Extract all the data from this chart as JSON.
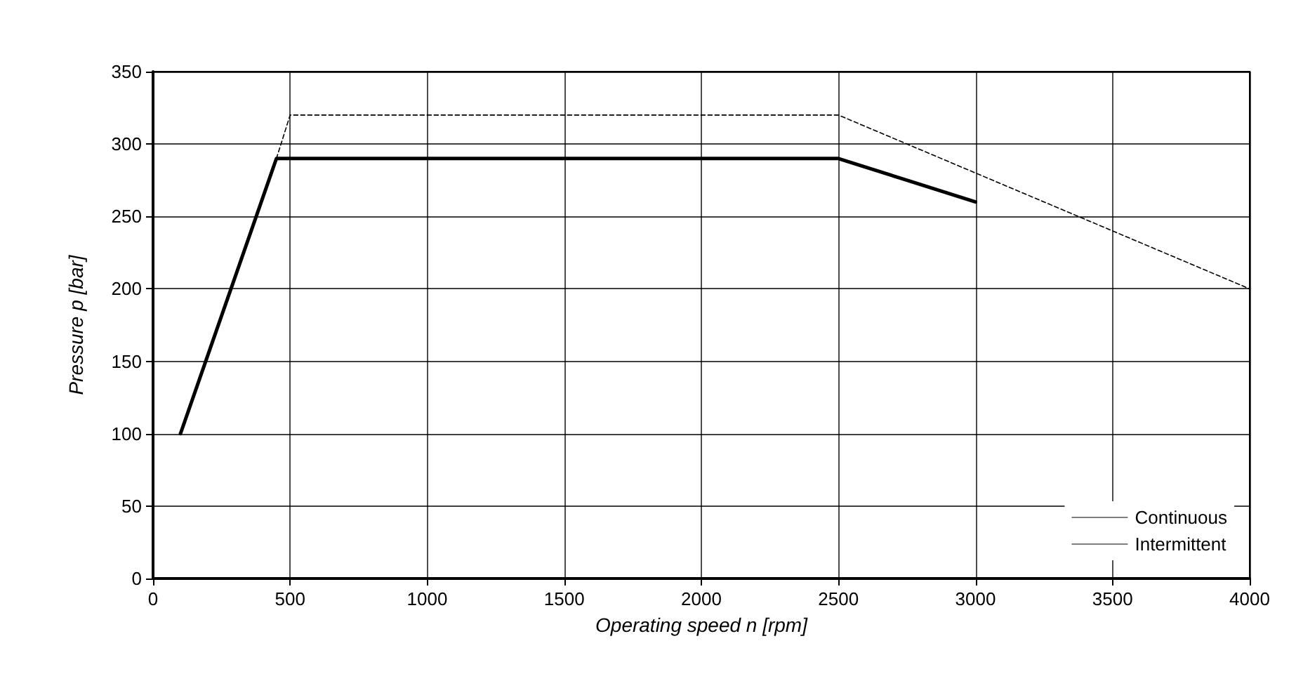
{
  "chart_data": {
    "type": "line",
    "xlabel": "Operating speed n [rpm]",
    "ylabel": "Pressure p [bar]",
    "xlim": [
      0,
      4000
    ],
    "xticks": [
      0,
      500,
      1000,
      1500,
      2000,
      2500,
      3000,
      3500,
      4000
    ],
    "ylim": [
      0,
      350
    ],
    "yticks": [
      0,
      50,
      100,
      150,
      200,
      250,
      300,
      350
    ],
    "grid": true,
    "legend": "bottom right",
    "marker": "none",
    "series": [
      {
        "name": "Continuous",
        "color": "#000000",
        "line_style": "solid",
        "x": [
          100,
          450,
          2500,
          3000
        ],
        "values": [
          100,
          290,
          290,
          260
        ]
      },
      {
        "name": "Intermittent",
        "color": "#000000",
        "line_style": "dashed",
        "x": [
          450,
          500,
          2500,
          4000
        ],
        "values": [
          290,
          320,
          320,
          200
        ]
      }
    ]
  }
}
